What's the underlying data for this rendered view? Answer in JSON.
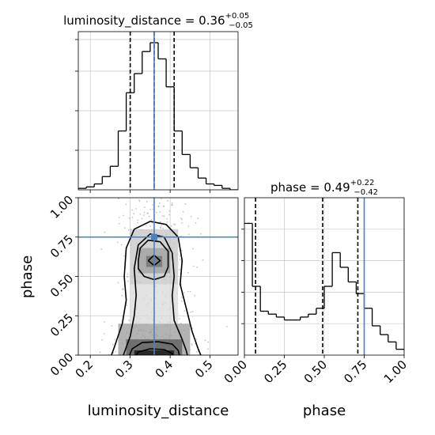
{
  "chart_data": {
    "type": "corner",
    "parameters": [
      "luminosity_distance",
      "phase"
    ],
    "truths": {
      "luminosity_distance": 0.36,
      "phase": 0.75
    },
    "panels": {
      "hist_luminosity_distance": {
        "type": "step-histogram",
        "title": {
          "prefix": "luminosity_distance = 0.36",
          "sup": "+0.05",
          "sub": "−0.05"
        },
        "xlim": [
          0.17,
          0.57
        ],
        "ylim": [
          0,
          1.0
        ],
        "quantile_lines": [
          0.3,
          0.36,
          0.41
        ],
        "truth": 0.36,
        "bin_edges": [
          0.17,
          0.19,
          0.21,
          0.23,
          0.25,
          0.27,
          0.29,
          0.31,
          0.33,
          0.35,
          0.37,
          0.39,
          0.41,
          0.43,
          0.45,
          0.47,
          0.49,
          0.51,
          0.53,
          0.55,
          0.57
        ],
        "counts": [
          0.01,
          0.02,
          0.04,
          0.09,
          0.16,
          0.4,
          0.66,
          0.79,
          0.94,
          1.0,
          0.89,
          0.7,
          0.4,
          0.24,
          0.15,
          0.08,
          0.04,
          0.03,
          0.01,
          0.0
        ]
      },
      "hist_phase": {
        "type": "step-histogram",
        "title": {
          "prefix": "phase = 0.49",
          "sup": "+0.22",
          "sub": "−0.42"
        },
        "xlim": [
          0,
          1
        ],
        "ylim": [
          0,
          1.0
        ],
        "quantile_lines": [
          0.07,
          0.49,
          0.71
        ],
        "truth": 0.75,
        "x_ticks": [
          "0.00",
          "0.25",
          "0.50",
          "0.75",
          "1.00"
        ],
        "x_tick_values": [
          0,
          0.25,
          0.5,
          0.75,
          1.0
        ],
        "xlabel": "phase",
        "bin_edges": [
          0,
          0.05,
          0.1,
          0.15,
          0.2,
          0.25,
          0.3,
          0.35,
          0.4,
          0.45,
          0.5,
          0.55,
          0.6,
          0.65,
          0.7,
          0.75,
          0.8,
          0.85,
          0.9,
          0.95,
          1.0
        ],
        "counts": [
          0.9,
          0.47,
          0.3,
          0.28,
          0.26,
          0.24,
          0.24,
          0.26,
          0.28,
          0.32,
          0.47,
          0.7,
          0.6,
          0.5,
          0.42,
          0.32,
          0.2,
          0.14,
          0.09,
          0.04
        ]
      },
      "joint": {
        "type": "2d-density",
        "x_param": "luminosity_distance",
        "y_param": "phase",
        "xlim": [
          0.17,
          0.57
        ],
        "ylim": [
          0,
          1
        ],
        "x_ticks": [
          "0.2",
          "0.3",
          "0.4",
          "0.5"
        ],
        "x_tick_values": [
          0.2,
          0.3,
          0.4,
          0.5
        ],
        "y_ticks": [
          "0.00",
          "0.25",
          "0.50",
          "0.75",
          "1.00"
        ],
        "y_tick_values": [
          0,
          0.25,
          0.5,
          0.75,
          1.0
        ],
        "xlabel": "luminosity_distance",
        "ylabel": "phase",
        "truth": [
          0.36,
          0.75
        ]
      }
    },
    "colors": {
      "truth": "#4c82c0",
      "line": "#000000",
      "grid": "#c8c8c8",
      "scatter": "#7f7f7f"
    },
    "grid": true
  }
}
